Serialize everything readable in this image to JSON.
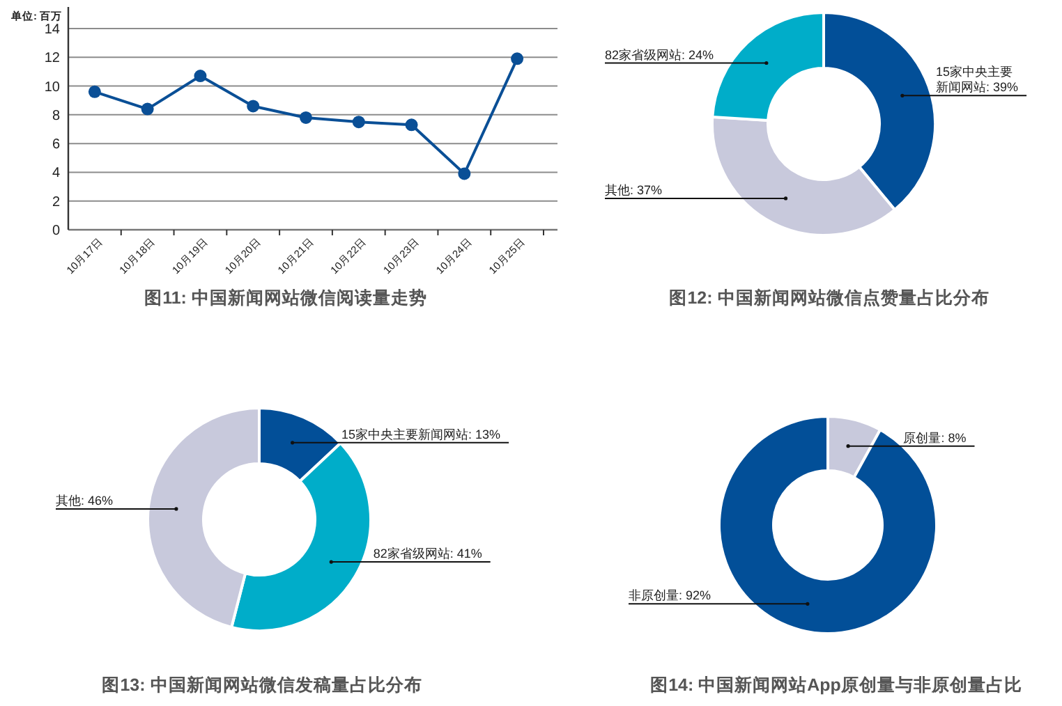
{
  "chart_data": [
    {
      "type": "line",
      "title": "图11: 中国新闻网站微信阅读量走势",
      "ylabel": "单位: 百万",
      "categories": [
        "10月17日",
        "10月18日",
        "10月19日",
        "10月20日",
        "10月21日",
        "10月22日",
        "10月23日",
        "10月24日",
        "10月25日"
      ],
      "values": [
        9.6,
        8.4,
        10.7,
        8.6,
        7.8,
        7.5,
        7.3,
        3.9,
        11.9
      ],
      "color": "#0a4f96",
      "ylim": [
        0,
        15.5
      ],
      "yticks": [
        0,
        2,
        4,
        6,
        8,
        10,
        12,
        14
      ],
      "grid": "y",
      "marker": "circle"
    },
    {
      "type": "donut",
      "title": "图12: 中国新闻网站微信点赞量占比分布",
      "categories": [
        "15家中央主要新闻网站",
        "其他",
        "82家省级网站"
      ],
      "values": [
        39,
        37,
        24
      ],
      "value_labels": [
        "39%",
        "37%",
        "24%"
      ],
      "colors": [
        "#024f98",
        "#c8c9dc",
        "#00adc9"
      ]
    },
    {
      "type": "donut",
      "title": "图13: 中国新闻网站微信发稿量占比分布",
      "categories": [
        "15家中央主要新闻网站",
        "82家省级网站",
        "其他"
      ],
      "values": [
        13,
        41,
        46
      ],
      "value_labels": [
        "13%",
        "41%",
        "46%"
      ],
      "colors": [
        "#024f98",
        "#00adc9",
        "#c8c9dc"
      ]
    },
    {
      "type": "donut",
      "title": "图14: 中国新闻网站App原创量与非原创量占比",
      "categories": [
        "原创量",
        "非原创量"
      ],
      "values": [
        8,
        92
      ],
      "value_labels": [
        "8%",
        "92%"
      ],
      "colors": [
        "#c8c9dc",
        "#024f98"
      ]
    }
  ]
}
